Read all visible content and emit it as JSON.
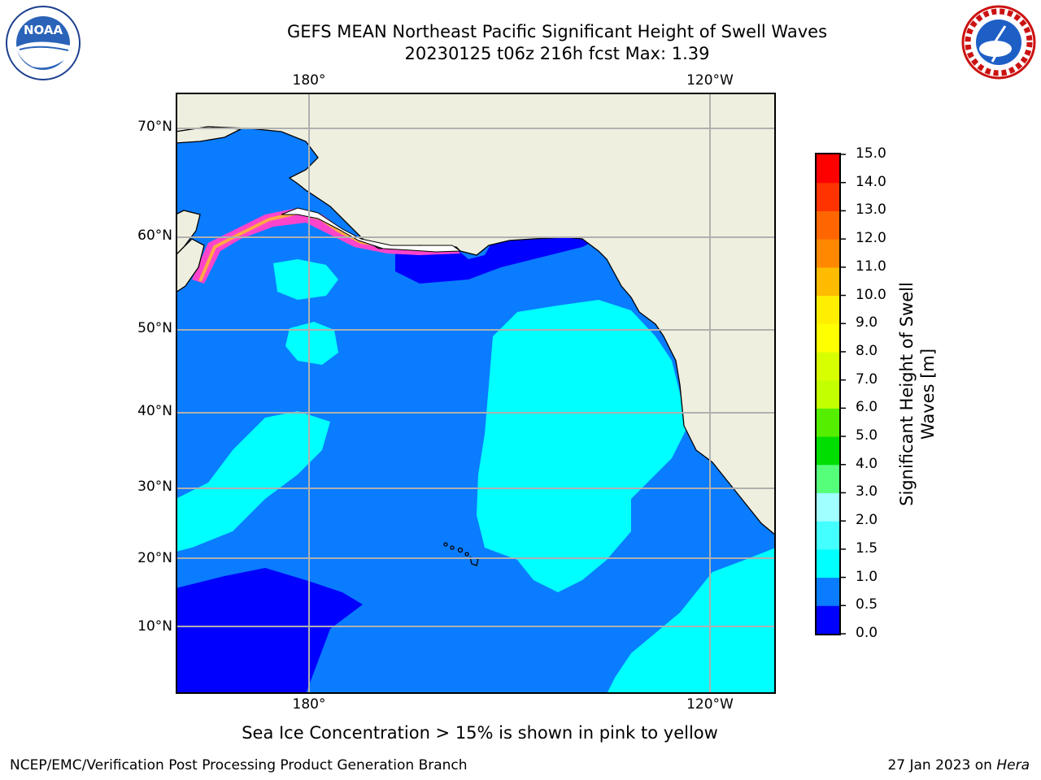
{
  "title": {
    "line1": "GEFS MEAN Northeast Pacific Significant Height of Swell Waves",
    "line2": "20230125 t06z 216h fcst   Max: 1.39"
  },
  "map": {
    "lat_labels": [
      "70°N",
      "60°N",
      "50°N",
      "40°N",
      "30°N",
      "20°N",
      "10°N"
    ],
    "lon_labels_top": [
      "180°",
      "120°W"
    ],
    "lon_labels_bottom": [
      "180°",
      "120°W"
    ],
    "colors": {
      "land": "#efefdf",
      "ice_white": "#ffffff",
      "grid": "#b0b0b0"
    }
  },
  "colorbar": {
    "title": "Significant Height of Swell Waves [m]",
    "ticks": [
      "0.0",
      "0.5",
      "1.0",
      "1.5",
      "2.0",
      "3.0",
      "4.0",
      "5.0",
      "6.0",
      "7.0",
      "8.0",
      "9.0",
      "10.0",
      "11.0",
      "12.0",
      "13.0",
      "14.0",
      "15.0"
    ],
    "colors": [
      "#0000ff",
      "#0a7cff",
      "#00ffff",
      "#44ffff",
      "#a0ffff",
      "#55ff7a",
      "#00dd00",
      "#55ee00",
      "#c4ff00",
      "#d8ff00",
      "#ffff00",
      "#ffee00",
      "#ffbb00",
      "#ff8800",
      "#ff6600",
      "#ff3300",
      "#ff0000"
    ]
  },
  "notes": {
    "sea_ice": "Sea Ice Concentration > 15% is shown in pink to yellow",
    "branch": "NCEP/EMC/Verification Post Processing Product Generation Branch",
    "date": "27 Jan 2023 on ",
    "machine": "Hera"
  },
  "logos": {
    "noaa_text": "NOAA",
    "nws_text": "NATIONAL WEATHER SERVICE"
  }
}
